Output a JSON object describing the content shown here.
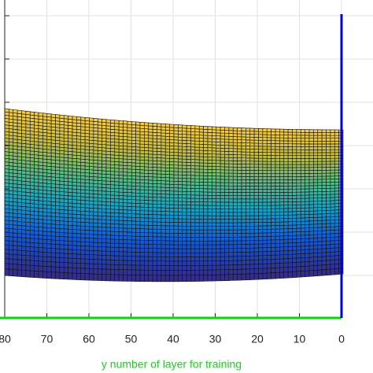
{
  "chart_data": {
    "type": "surface",
    "xlabel": "y number of layer for training",
    "xlim": [
      80,
      0
    ],
    "xticks": [
      80,
      70,
      60,
      50,
      40,
      30,
      20,
      10,
      0
    ],
    "grid": true,
    "xlabel_color": "#22cc22",
    "x_axis_color": "#00dd00",
    "z_axis_color": "#0000dd"
  }
}
